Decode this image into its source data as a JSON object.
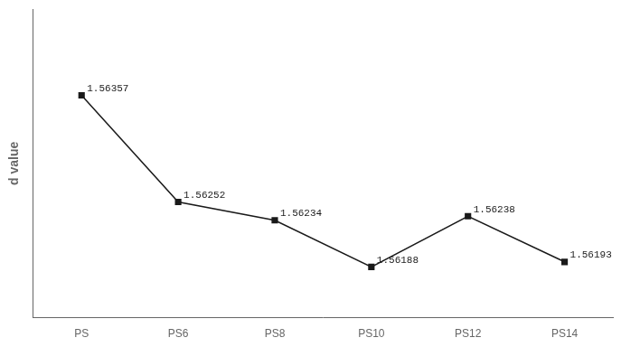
{
  "chart_data": {
    "type": "line",
    "categories": [
      "PS",
      "PS6",
      "PS8",
      "PS10",
      "PS12",
      "PS14"
    ],
    "values": [
      1.56357,
      1.56252,
      1.56234,
      1.56188,
      1.56238,
      1.56193
    ],
    "y_label": "d value",
    "color": "#1a1a1a",
    "marker": "square",
    "ylim": [
      1.56138,
      1.56442
    ],
    "grid": false,
    "tick_labels": "x",
    "data_labels": true
  }
}
